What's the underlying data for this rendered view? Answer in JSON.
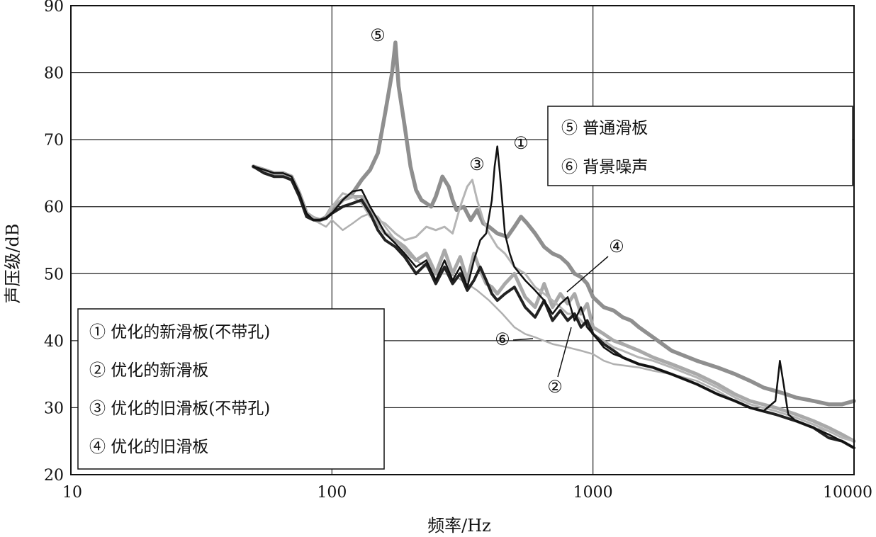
{
  "chart_data": {
    "type": "line",
    "xlabel": "频率/Hz",
    "ylabel": "声压级/dB",
    "x_scale": "log",
    "xlim": [
      10,
      10000
    ],
    "ylim": [
      20,
      90
    ],
    "x_ticks": [
      "10",
      "100",
      "1000",
      "10000"
    ],
    "y_ticks": [
      "20",
      "30",
      "40",
      "50",
      "60",
      "70",
      "80",
      "90"
    ],
    "grid": true,
    "series_style": {
      "1": {
        "color": "#111111",
        "width": 2.5
      },
      "2": {
        "color": "#222222",
        "width": 4
      },
      "3": {
        "color": "#b5b5b5",
        "width": 3
      },
      "4": {
        "color": "#a9a9a9",
        "width": 5
      },
      "5": {
        "color": "#8f8f8f",
        "width": 5.5
      },
      "6": {
        "color": "#b0b0b0",
        "width": 2.5
      }
    },
    "series": [
      {
        "id": "1",
        "name": "① 优化的新滑板(不带孔)",
        "x": [
          50,
          55,
          60,
          65,
          70,
          75,
          80,
          85,
          90,
          95,
          100,
          110,
          120,
          130,
          140,
          150,
          160,
          175,
          190,
          210,
          230,
          250,
          270,
          290,
          310,
          330,
          350,
          370,
          390,
          410,
          420,
          430,
          440,
          460,
          480,
          500,
          550,
          600,
          650,
          700,
          750,
          800,
          850,
          900,
          950,
          1000,
          1100,
          1200,
          1300,
          1400,
          1500,
          1700,
          2000,
          2500,
          3000,
          3500,
          4000,
          4500,
          5000,
          5200,
          5400,
          5600,
          6000,
          7000,
          8000,
          9000,
          10000
        ],
        "y": [
          66,
          65.5,
          65,
          65,
          64.5,
          62,
          59,
          58,
          58,
          58.2,
          59,
          61,
          62.3,
          62.5,
          60,
          58,
          56,
          54.5,
          53,
          51,
          52,
          49,
          52,
          49,
          51,
          48,
          52,
          55,
          56,
          61,
          66,
          69,
          65,
          56,
          53,
          51,
          49,
          47.5,
          46,
          44,
          45.5,
          46.5,
          43,
          45,
          42,
          41,
          39,
          38,
          37.5,
          37,
          36.5,
          36,
          35,
          33.5,
          32,
          31,
          30,
          29.5,
          31,
          37,
          33,
          29,
          28,
          27,
          26,
          25,
          24
        ]
      },
      {
        "id": "2",
        "name": "② 优化的新滑板",
        "x": [
          50,
          55,
          60,
          65,
          70,
          75,
          80,
          85,
          90,
          95,
          100,
          110,
          120,
          130,
          140,
          150,
          160,
          175,
          190,
          210,
          230,
          250,
          270,
          290,
          310,
          330,
          350,
          370,
          390,
          410,
          430,
          460,
          500,
          550,
          600,
          650,
          700,
          750,
          800,
          850,
          900,
          950,
          1000,
          1100,
          1200,
          1300,
          1500,
          1700,
          2000,
          2500,
          3000,
          3500,
          4000,
          5000,
          6000,
          7000,
          8000,
          9000,
          10000
        ],
        "y": [
          66,
          65,
          64.5,
          64.5,
          64,
          61.5,
          58.5,
          58,
          58,
          58.3,
          59,
          60,
          60.5,
          61,
          59,
          56.5,
          55,
          54,
          52.5,
          50,
          51.5,
          48.5,
          51,
          48.5,
          50,
          47.5,
          49,
          51,
          49,
          47,
          46,
          47,
          48,
          45,
          43.5,
          46,
          43,
          44.5,
          43,
          44,
          42,
          43,
          41,
          39.5,
          38.5,
          37.5,
          36.5,
          36,
          35,
          33.5,
          32,
          31,
          30,
          29,
          28,
          27,
          25.5,
          25,
          24
        ]
      },
      {
        "id": "3",
        "name": "③ 优化的旧滑板(不带孔)",
        "x": [
          50,
          55,
          60,
          65,
          70,
          75,
          80,
          85,
          90,
          95,
          100,
          110,
          120,
          130,
          140,
          150,
          160,
          175,
          190,
          210,
          230,
          250,
          270,
          290,
          310,
          330,
          345,
          360,
          380,
          400,
          430,
          460,
          500,
          550,
          600,
          650,
          700,
          750,
          800,
          850,
          900,
          1000,
          1100,
          1200,
          1300,
          1500,
          1700,
          2000,
          2500,
          3000,
          3500,
          4000,
          5000,
          6000,
          7000,
          8000,
          9000,
          10000
        ],
        "y": [
          66,
          65.5,
          65,
          65,
          64.5,
          62,
          59,
          58.3,
          58,
          58.5,
          60,
          62,
          61.5,
          60.5,
          58.5,
          58,
          57.5,
          56,
          55,
          55.5,
          57,
          56.5,
          57,
          56,
          60,
          63,
          64,
          61,
          58,
          56,
          54,
          53,
          51,
          50,
          48,
          47,
          46,
          45,
          44,
          44,
          43,
          41,
          40,
          39,
          38.5,
          37.5,
          37,
          36,
          34.5,
          33,
          31.5,
          30.5,
          29.5,
          28.5,
          27.5,
          26.5,
          25.5,
          25
        ]
      },
      {
        "id": "4",
        "name": "④ 优化的旧滑板",
        "x": [
          50,
          55,
          60,
          65,
          70,
          75,
          80,
          85,
          90,
          95,
          100,
          110,
          120,
          130,
          140,
          150,
          160,
          175,
          190,
          210,
          230,
          250,
          270,
          290,
          310,
          330,
          350,
          370,
          390,
          410,
          430,
          460,
          500,
          550,
          600,
          650,
          700,
          750,
          800,
          850,
          900,
          950,
          1000,
          1100,
          1200,
          1300,
          1500,
          1700,
          2000,
          2500,
          3000,
          3500,
          4000,
          5000,
          6000,
          7000,
          8000,
          9000,
          10000
        ],
        "y": [
          66,
          65.5,
          65,
          65,
          64.5,
          62,
          59,
          58.3,
          58,
          58.5,
          60,
          61,
          61.5,
          61.5,
          59.5,
          57.5,
          56,
          55,
          54,
          52,
          53,
          50,
          53.5,
          50,
          52.5,
          49,
          53,
          50.5,
          48.5,
          48,
          47,
          48.5,
          50,
          46.5,
          45,
          48.5,
          45,
          47,
          45.5,
          47,
          44,
          45.5,
          42,
          41,
          40,
          39.5,
          38.5,
          37.5,
          36.5,
          35,
          33.5,
          32,
          31,
          30,
          29,
          28,
          27,
          26,
          25
        ]
      },
      {
        "id": "5",
        "name": "⑤ 普通滑板",
        "x": [
          50,
          55,
          60,
          65,
          70,
          75,
          80,
          85,
          90,
          95,
          100,
          110,
          120,
          130,
          140,
          150,
          160,
          170,
          175,
          180,
          190,
          200,
          210,
          220,
          230,
          240,
          250,
          265,
          280,
          290,
          300,
          320,
          340,
          360,
          380,
          400,
          430,
          470,
          500,
          530,
          560,
          600,
          650,
          700,
          750,
          800,
          850,
          900,
          950,
          1000,
          1100,
          1200,
          1300,
          1400,
          1500,
          1700,
          2000,
          2500,
          3000,
          3500,
          4000,
          4500,
          5000,
          5500,
          6000,
          7000,
          8000,
          9000,
          10000
        ],
        "y": [
          66,
          65.5,
          65,
          65,
          64.5,
          62,
          59,
          58.3,
          58,
          58.3,
          59.5,
          61,
          62,
          64,
          65.5,
          68,
          74,
          80,
          84.5,
          78,
          72,
          66,
          62.5,
          61,
          60.5,
          60,
          61.5,
          64.5,
          63,
          61,
          59.5,
          60,
          58,
          59.5,
          57.5,
          57,
          56,
          55.5,
          57,
          58.5,
          57.5,
          56,
          54,
          53,
          52.5,
          51.5,
          50,
          49.5,
          48.5,
          46.5,
          45,
          44.5,
          43.5,
          43,
          42,
          40.5,
          38.5,
          37,
          36,
          35,
          34,
          33,
          32.5,
          32,
          31.5,
          31,
          30.5,
          30.5,
          31
        ]
      },
      {
        "id": "6",
        "name": "⑥ 背景噪声",
        "x": [
          50,
          55,
          60,
          65,
          70,
          75,
          80,
          85,
          90,
          95,
          100,
          110,
          120,
          130,
          140,
          150,
          160,
          175,
          190,
          200,
          210,
          230,
          250,
          260,
          280,
          300,
          330,
          360,
          400,
          450,
          500,
          550,
          600,
          700,
          800,
          900,
          1000,
          1100,
          1200,
          1500,
          1700,
          2000,
          2500,
          3000,
          3500,
          4000,
          5000,
          6000,
          7000,
          8000,
          9000,
          10000
        ],
        "y": [
          66,
          65.5,
          65,
          65,
          64.5,
          62,
          59,
          58,
          57.5,
          57,
          58,
          56.5,
          57.5,
          58.5,
          59,
          58.5,
          57,
          55,
          53.5,
          52.5,
          52,
          51,
          50.5,
          50,
          50,
          49.5,
          48.5,
          47.5,
          46,
          44,
          42,
          41,
          40.5,
          39.5,
          39,
          38.5,
          38,
          37,
          36.5,
          36,
          35.5,
          35,
          34,
          32.5,
          31,
          30,
          29,
          28,
          27,
          26.5,
          25.5,
          25
        ]
      }
    ],
    "annotations": {
      "m5": "⑤",
      "m1": "①",
      "m3": "③",
      "m4": "④",
      "m6": "⑥",
      "m2": "②"
    }
  }
}
